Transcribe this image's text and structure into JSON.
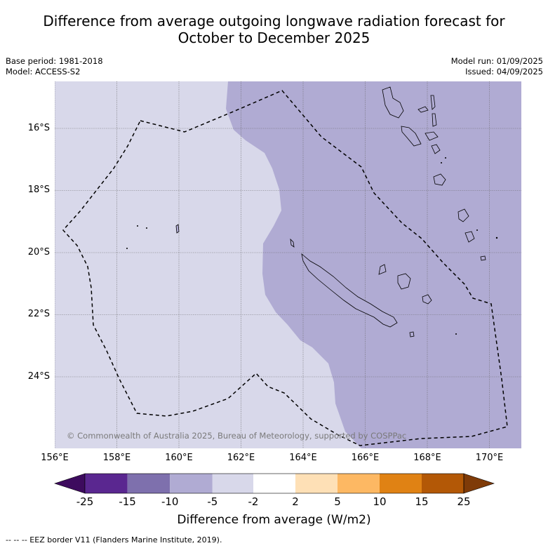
{
  "title_line1": "Difference from average outgoing longwave radiation forecast for",
  "title_line2": "October to December 2025",
  "base_period": "Base period: 1981-2018",
  "model": "Model: ACCESS-S2",
  "model_run": "Model run: 01/09/2025",
  "issued": "Issued: 04/09/2025",
  "lat_labels": [
    "16°S",
    "18°S",
    "20°S",
    "22°S",
    "24°S"
  ],
  "lon_labels": [
    "156°E",
    "158°E",
    "160°E",
    "162°E",
    "164°E",
    "166°E",
    "168°E",
    "170°E"
  ],
  "copyright": "© Commonwealth of Australia 2025, Bureau of Meteorology, supported by COSPPac",
  "colorbar": {
    "ticks": [
      "-25",
      "-15",
      "-10",
      "-5",
      "-2",
      "2",
      "5",
      "10",
      "15",
      "25"
    ],
    "colors": [
      "#3d0b5e",
      "#5a2790",
      "#7e70ad",
      "#b0abd3",
      "#d8d8ea",
      "#ffffff",
      "#fee0b6",
      "#fdb863",
      "#e08214",
      "#b35806",
      "#7f3b08"
    ],
    "label": "Difference from average (W/m2)"
  },
  "legend_eez": "-- -- -- EEZ border V11 (Flanders Marine Institute, 2019).",
  "map_colors": {
    "light_purple": "#d8d8ea",
    "mid_purple": "#b0abd3"
  }
}
